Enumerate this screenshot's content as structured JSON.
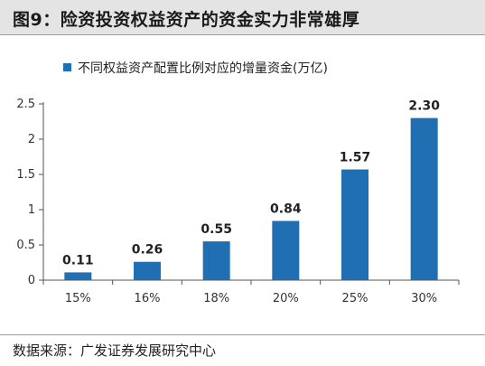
{
  "header": {
    "title": "图9：险资投资权益资产的资金实力非常雄厚"
  },
  "footer": {
    "source": "数据来源：广发证券发展研究中心"
  },
  "colors": {
    "bar": "#1f6fb2",
    "axis": "#555555"
  },
  "chart_data": {
    "type": "bar",
    "title": "",
    "xlabel": "",
    "ylabel": "",
    "categories": [
      "15%",
      "16%",
      "18%",
      "20%",
      "25%",
      "30%"
    ],
    "series": [
      {
        "name": "不同权益资产配置比例对应的增量资金(万亿)",
        "values": [
          0.11,
          0.26,
          0.55,
          0.84,
          1.57,
          2.3
        ]
      }
    ],
    "data_labels": [
      "0.11",
      "0.26",
      "0.55",
      "0.84",
      "1.57",
      "2.30"
    ],
    "ylim": [
      0,
      2.5
    ],
    "yticks": [
      "0",
      "0.5",
      "1",
      "1.5",
      "2",
      "2.5"
    ],
    "grid": false,
    "legend_position": "top-center"
  }
}
